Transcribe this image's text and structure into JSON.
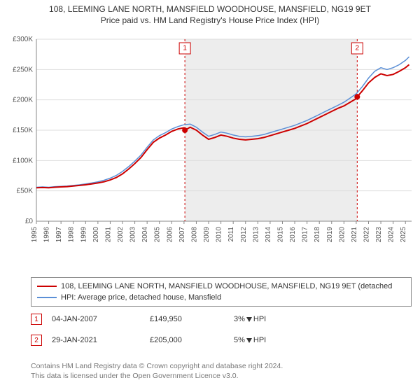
{
  "titles": {
    "line1": "108, LEEMING LANE NORTH, MANSFIELD WOODHOUSE, MANSFIELD, NG19 9ET",
    "line2": "Price paid vs. HM Land Registry's House Price Index (HPI)"
  },
  "chart": {
    "type": "line",
    "background_color": "#ffffff",
    "grid_color": "#dddddd",
    "axis_color": "#888888",
    "shaded_color": "#b8b8b8",
    "shaded_opacity": 0.25,
    "shaded_xrange": [
      2007.07,
      2021.08
    ],
    "xlim": [
      1995,
      2025.5
    ],
    "ylim": [
      0,
      300000
    ],
    "ytick_step": 50000,
    "yticks": [
      "£0",
      "£50K",
      "£100K",
      "£150K",
      "£200K",
      "£250K",
      "£300K"
    ],
    "xticks": [
      1995,
      1996,
      1997,
      1998,
      1999,
      2000,
      2001,
      2002,
      2003,
      2004,
      2005,
      2006,
      2007,
      2008,
      2009,
      2010,
      2011,
      2012,
      2013,
      2014,
      2015,
      2016,
      2017,
      2018,
      2019,
      2020,
      2021,
      2022,
      2023,
      2024,
      2025
    ],
    "ylabel_fontsize": 10,
    "xlabel_fontsize": 10,
    "series": {
      "red": {
        "color": "#cc0000",
        "width": 2,
        "label": "108, LEEMING LANE NORTH, MANSFIELD WOODHOUSE, MANSFIELD, NG19 9ET (detached",
        "points": [
          [
            1995.0,
            55000
          ],
          [
            1995.5,
            55500
          ],
          [
            1996.0,
            55000
          ],
          [
            1996.5,
            56000
          ],
          [
            1997.0,
            56500
          ],
          [
            1997.5,
            57000
          ],
          [
            1998.0,
            58000
          ],
          [
            1998.5,
            59000
          ],
          [
            1999.0,
            60000
          ],
          [
            1999.5,
            61500
          ],
          [
            2000.0,
            63000
          ],
          [
            2000.5,
            65000
          ],
          [
            2001.0,
            68000
          ],
          [
            2001.5,
            72000
          ],
          [
            2002.0,
            78000
          ],
          [
            2002.5,
            86000
          ],
          [
            2003.0,
            95000
          ],
          [
            2003.5,
            105000
          ],
          [
            2004.0,
            118000
          ],
          [
            2004.5,
            130000
          ],
          [
            2005.0,
            137000
          ],
          [
            2005.5,
            142000
          ],
          [
            2006.0,
            148000
          ],
          [
            2006.5,
            152000
          ],
          [
            2007.0,
            154000
          ],
          [
            2007.07,
            149950
          ],
          [
            2007.5,
            155000
          ],
          [
            2008.0,
            150000
          ],
          [
            2008.5,
            142000
          ],
          [
            2009.0,
            135000
          ],
          [
            2009.5,
            138000
          ],
          [
            2010.0,
            142000
          ],
          [
            2010.5,
            140000
          ],
          [
            2011.0,
            137000
          ],
          [
            2011.5,
            135000
          ],
          [
            2012.0,
            134000
          ],
          [
            2012.5,
            135000
          ],
          [
            2013.0,
            136000
          ],
          [
            2013.5,
            138000
          ],
          [
            2014.0,
            141000
          ],
          [
            2014.5,
            144000
          ],
          [
            2015.0,
            147000
          ],
          [
            2015.5,
            150000
          ],
          [
            2016.0,
            153000
          ],
          [
            2016.5,
            157000
          ],
          [
            2017.0,
            161000
          ],
          [
            2017.5,
            166000
          ],
          [
            2018.0,
            171000
          ],
          [
            2018.5,
            176000
          ],
          [
            2019.0,
            181000
          ],
          [
            2019.5,
            186000
          ],
          [
            2020.0,
            190000
          ],
          [
            2020.5,
            196000
          ],
          [
            2021.0,
            202000
          ],
          [
            2021.08,
            205000
          ],
          [
            2021.5,
            215000
          ],
          [
            2022.0,
            228000
          ],
          [
            2022.5,
            237000
          ],
          [
            2023.0,
            243000
          ],
          [
            2023.5,
            240000
          ],
          [
            2024.0,
            242000
          ],
          [
            2024.5,
            247000
          ],
          [
            2025.0,
            253000
          ],
          [
            2025.3,
            258000
          ]
        ]
      },
      "blue": {
        "color": "#5b8fd6",
        "width": 1.5,
        "label": "HPI: Average price, detached house, Mansfield",
        "points": [
          [
            1995.0,
            56000
          ],
          [
            1995.5,
            56500
          ],
          [
            1996.0,
            56000
          ],
          [
            1996.5,
            57000
          ],
          [
            1997.0,
            57500
          ],
          [
            1997.5,
            58000
          ],
          [
            1998.0,
            59000
          ],
          [
            1998.5,
            60000
          ],
          [
            1999.0,
            61500
          ],
          [
            1999.5,
            63000
          ],
          [
            2000.0,
            65000
          ],
          [
            2000.5,
            67500
          ],
          [
            2001.0,
            71000
          ],
          [
            2001.5,
            75500
          ],
          [
            2002.0,
            82000
          ],
          [
            2002.5,
            90000
          ],
          [
            2003.0,
            99000
          ],
          [
            2003.5,
            109000
          ],
          [
            2004.0,
            122000
          ],
          [
            2004.5,
            134000
          ],
          [
            2005.0,
            141000
          ],
          [
            2005.5,
            146000
          ],
          [
            2006.0,
            152000
          ],
          [
            2006.5,
            156000
          ],
          [
            2007.0,
            159000
          ],
          [
            2007.5,
            160000
          ],
          [
            2008.0,
            155000
          ],
          [
            2008.5,
            147000
          ],
          [
            2009.0,
            140000
          ],
          [
            2009.5,
            143000
          ],
          [
            2010.0,
            147000
          ],
          [
            2010.5,
            145000
          ],
          [
            2011.0,
            142000
          ],
          [
            2011.5,
            140000
          ],
          [
            2012.0,
            139000
          ],
          [
            2012.5,
            140000
          ],
          [
            2013.0,
            141000
          ],
          [
            2013.5,
            143000
          ],
          [
            2014.0,
            146000
          ],
          [
            2014.5,
            149000
          ],
          [
            2015.0,
            152000
          ],
          [
            2015.5,
            155000
          ],
          [
            2016.0,
            158000
          ],
          [
            2016.5,
            162000
          ],
          [
            2017.0,
            166000
          ],
          [
            2017.5,
            171000
          ],
          [
            2018.0,
            176000
          ],
          [
            2018.5,
            181000
          ],
          [
            2019.0,
            186000
          ],
          [
            2019.5,
            191000
          ],
          [
            2020.0,
            196000
          ],
          [
            2020.5,
            203000
          ],
          [
            2021.0,
            210000
          ],
          [
            2021.5,
            222000
          ],
          [
            2022.0,
            236000
          ],
          [
            2022.5,
            247000
          ],
          [
            2023.0,
            253000
          ],
          [
            2023.5,
            250000
          ],
          [
            2024.0,
            253000
          ],
          [
            2024.5,
            258000
          ],
          [
            2025.0,
            265000
          ],
          [
            2025.3,
            271000
          ]
        ]
      }
    },
    "markers": [
      {
        "num": "1",
        "x": 2007.07,
        "y": 149950,
        "box_y": 285000
      },
      {
        "num": "2",
        "x": 2021.08,
        "y": 205000,
        "box_y": 285000
      }
    ],
    "marker_box_color": "#cc0000"
  },
  "legend": {
    "rows": [
      {
        "swatch": "red",
        "text": "108, LEEMING LANE NORTH, MANSFIELD WOODHOUSE, MANSFIELD, NG19 9ET (detached"
      },
      {
        "swatch": "blue",
        "text": "HPI: Average price, detached house, Mansfield"
      }
    ]
  },
  "transactions": [
    {
      "num": "1",
      "date": "04-JAN-2007",
      "price": "£149,950",
      "pct": "3%",
      "dir": "down",
      "suffix": "HPI"
    },
    {
      "num": "2",
      "date": "29-JAN-2021",
      "price": "£205,000",
      "pct": "5%",
      "dir": "down",
      "suffix": "HPI"
    }
  ],
  "footer": {
    "l1": "Contains HM Land Registry data © Crown copyright and database right 2024.",
    "l2": "This data is licensed under the Open Government Licence v3.0."
  }
}
